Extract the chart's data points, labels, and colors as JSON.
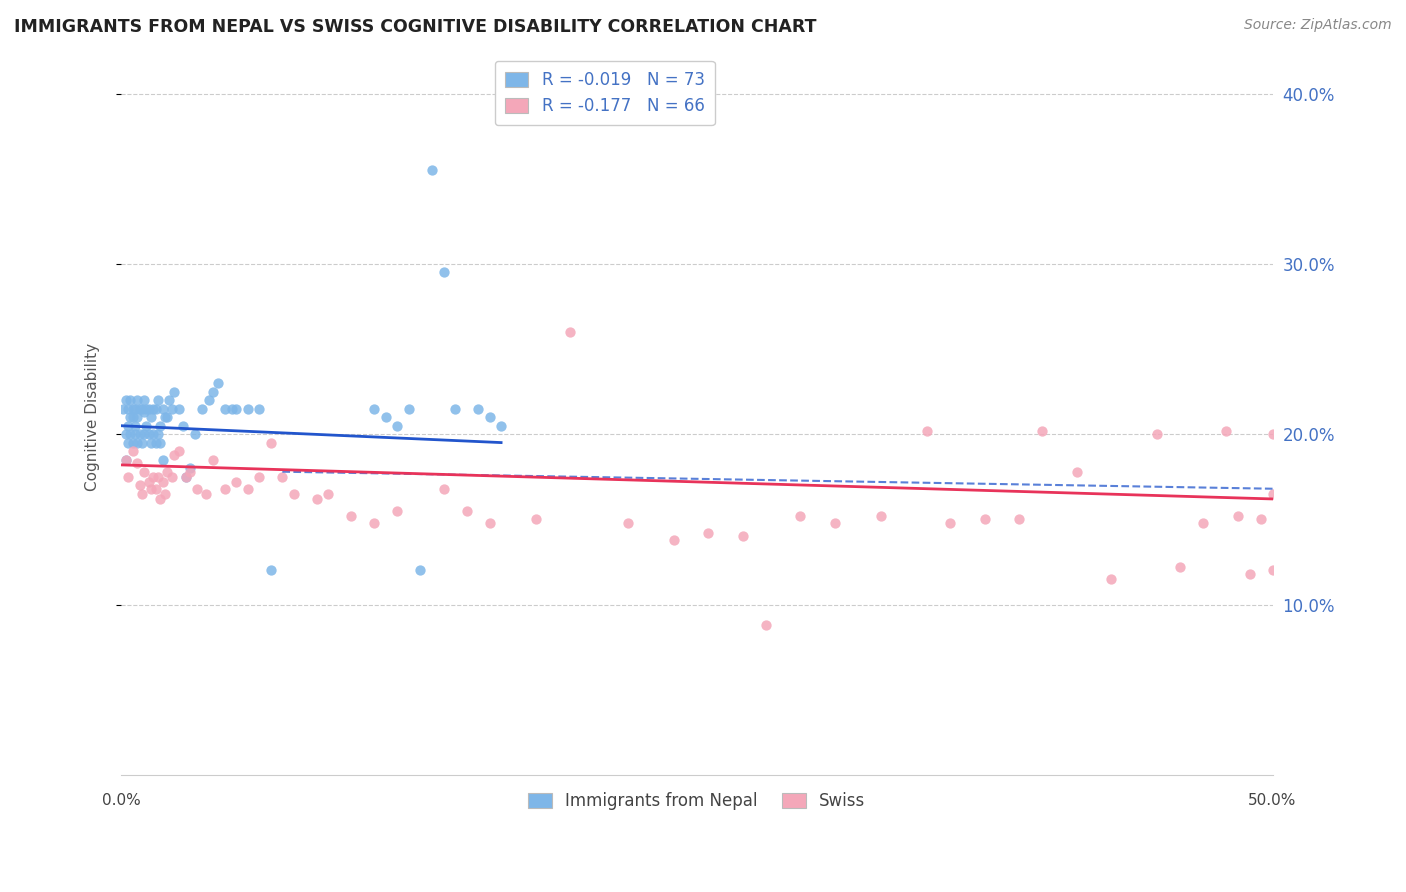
{
  "title": "IMMIGRANTS FROM NEPAL VS SWISS COGNITIVE DISABILITY CORRELATION CHART",
  "source": "Source: ZipAtlas.com",
  "ylabel": "Cognitive Disability",
  "xlim": [
    0.0,
    0.5
  ],
  "ylim": [
    0.0,
    0.42
  ],
  "ytick_vals": [
    0.1,
    0.2,
    0.3,
    0.4
  ],
  "ytick_labels": [
    "10.0%",
    "20.0%",
    "30.0%",
    "40.0%"
  ],
  "xtick_vals": [
    0.0,
    0.05,
    0.1,
    0.15,
    0.2,
    0.25,
    0.3,
    0.35,
    0.4,
    0.45,
    0.5
  ],
  "nepal_R": -0.019,
  "nepal_N": 73,
  "swiss_R": -0.177,
  "swiss_N": 66,
  "nepal_color": "#7EB6E8",
  "swiss_color": "#F4A7B9",
  "nepal_line_color": "#2255CC",
  "swiss_line_color": "#E8335A",
  "nepal_line_dash_color": "#7EB6E8",
  "nepal_x": [
    0.001,
    0.002,
    0.002,
    0.002,
    0.003,
    0.003,
    0.003,
    0.004,
    0.004,
    0.004,
    0.005,
    0.005,
    0.005,
    0.006,
    0.006,
    0.006,
    0.007,
    0.007,
    0.007,
    0.008,
    0.008,
    0.009,
    0.009,
    0.01,
    0.01,
    0.01,
    0.011,
    0.011,
    0.012,
    0.012,
    0.013,
    0.013,
    0.014,
    0.014,
    0.015,
    0.015,
    0.016,
    0.016,
    0.017,
    0.017,
    0.018,
    0.018,
    0.019,
    0.02,
    0.021,
    0.022,
    0.023,
    0.025,
    0.027,
    0.028,
    0.03,
    0.032,
    0.035,
    0.038,
    0.04,
    0.042,
    0.045,
    0.048,
    0.05,
    0.055,
    0.06,
    0.065,
    0.11,
    0.115,
    0.12,
    0.125,
    0.13,
    0.135,
    0.14,
    0.145,
    0.155,
    0.16,
    0.165
  ],
  "nepal_y": [
    0.215,
    0.2,
    0.22,
    0.185,
    0.205,
    0.195,
    0.215,
    0.2,
    0.21,
    0.22,
    0.195,
    0.21,
    0.215,
    0.2,
    0.215,
    0.205,
    0.195,
    0.21,
    0.22,
    0.2,
    0.215,
    0.195,
    0.215,
    0.2,
    0.213,
    0.22,
    0.205,
    0.215,
    0.2,
    0.215,
    0.195,
    0.21,
    0.2,
    0.215,
    0.195,
    0.215,
    0.2,
    0.22,
    0.205,
    0.195,
    0.215,
    0.185,
    0.21,
    0.21,
    0.22,
    0.215,
    0.225,
    0.215,
    0.205,
    0.175,
    0.18,
    0.2,
    0.215,
    0.22,
    0.225,
    0.23,
    0.215,
    0.215,
    0.215,
    0.215,
    0.215,
    0.12,
    0.215,
    0.21,
    0.205,
    0.215,
    0.12,
    0.355,
    0.295,
    0.215,
    0.215,
    0.21,
    0.205
  ],
  "swiss_x": [
    0.002,
    0.003,
    0.005,
    0.007,
    0.008,
    0.009,
    0.01,
    0.012,
    0.013,
    0.014,
    0.015,
    0.016,
    0.017,
    0.018,
    0.019,
    0.02,
    0.022,
    0.023,
    0.025,
    0.028,
    0.03,
    0.033,
    0.037,
    0.04,
    0.045,
    0.05,
    0.055,
    0.06,
    0.065,
    0.07,
    0.075,
    0.085,
    0.09,
    0.1,
    0.11,
    0.12,
    0.14,
    0.15,
    0.16,
    0.18,
    0.195,
    0.22,
    0.24,
    0.255,
    0.27,
    0.28,
    0.295,
    0.31,
    0.33,
    0.35,
    0.36,
    0.375,
    0.39,
    0.4,
    0.415,
    0.43,
    0.45,
    0.46,
    0.47,
    0.48,
    0.485,
    0.49,
    0.495,
    0.5,
    0.5,
    0.5
  ],
  "swiss_y": [
    0.185,
    0.175,
    0.19,
    0.183,
    0.17,
    0.165,
    0.178,
    0.172,
    0.168,
    0.175,
    0.168,
    0.175,
    0.162,
    0.172,
    0.165,
    0.178,
    0.175,
    0.188,
    0.19,
    0.175,
    0.178,
    0.168,
    0.165,
    0.185,
    0.168,
    0.172,
    0.168,
    0.175,
    0.195,
    0.175,
    0.165,
    0.162,
    0.165,
    0.152,
    0.148,
    0.155,
    0.168,
    0.155,
    0.148,
    0.15,
    0.26,
    0.148,
    0.138,
    0.142,
    0.14,
    0.088,
    0.152,
    0.148,
    0.152,
    0.202,
    0.148,
    0.15,
    0.15,
    0.202,
    0.178,
    0.115,
    0.2,
    0.122,
    0.148,
    0.202,
    0.152,
    0.118,
    0.15,
    0.12,
    0.2,
    0.165
  ]
}
